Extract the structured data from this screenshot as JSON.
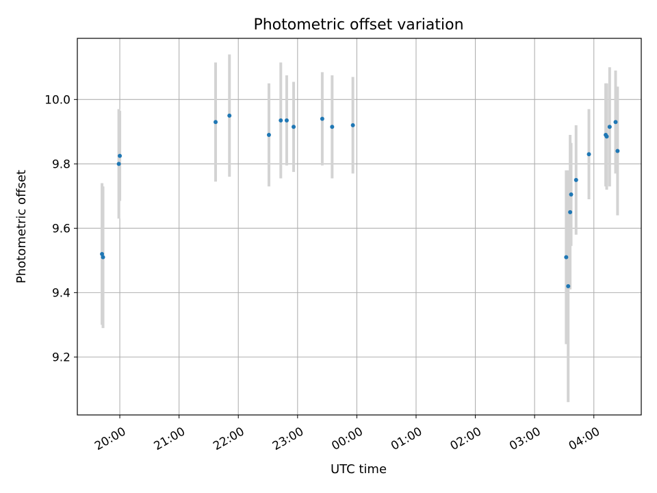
{
  "chart_data": {
    "type": "scatter",
    "title": "Photometric offset variation",
    "xlabel": "UTC time",
    "ylabel": "Photometric offset",
    "x_ticks": [
      "20:00",
      "21:00",
      "22:00",
      "23:00",
      "00:00",
      "01:00",
      "02:00",
      "03:00",
      "04:00"
    ],
    "xlim": [
      "2024-01-01T19:17",
      "2024-01-02T04:48"
    ],
    "ylim": [
      9.02,
      10.19
    ],
    "y_ticks": [
      9.2,
      9.4,
      9.6,
      9.8,
      10.0
    ],
    "grid": true,
    "colors": {
      "point": "#1f77b4",
      "errorbar": "#d3d3d3",
      "grid": "#b0b0b0"
    },
    "points": [
      {
        "t": "2024-01-01T19:42",
        "y": 9.52,
        "err": 0.22
      },
      {
        "t": "2024-01-01T19:43",
        "y": 9.51,
        "err": 0.22
      },
      {
        "t": "2024-01-01T19:59",
        "y": 9.8,
        "err": 0.17
      },
      {
        "t": "2024-01-01T20:00",
        "y": 9.825,
        "err": 0.14
      },
      {
        "t": "2024-01-01T21:37",
        "y": 9.93,
        "err": 0.185
      },
      {
        "t": "2024-01-01T21:51",
        "y": 9.95,
        "err": 0.19
      },
      {
        "t": "2024-01-01T22:31",
        "y": 9.89,
        "err": 0.16
      },
      {
        "t": "2024-01-01T22:43",
        "y": 9.935,
        "err": 0.18
      },
      {
        "t": "2024-01-01T22:49",
        "y": 9.935,
        "err": 0.14
      },
      {
        "t": "2024-01-01T22:56",
        "y": 9.915,
        "err": 0.14
      },
      {
        "t": "2024-01-01T23:25",
        "y": 9.94,
        "err": 0.145
      },
      {
        "t": "2024-01-01T23:35",
        "y": 9.915,
        "err": 0.16
      },
      {
        "t": "2024-01-01T23:56",
        "y": 9.92,
        "err": 0.15
      },
      {
        "t": "2024-01-02T03:32",
        "y": 9.51,
        "err": 0.27
      },
      {
        "t": "2024-01-02T03:34",
        "y": 9.42,
        "err": 0.36
      },
      {
        "t": "2024-01-02T03:36",
        "y": 9.65,
        "err": 0.24
      },
      {
        "t": "2024-01-02T03:37",
        "y": 9.705,
        "err": 0.16
      },
      {
        "t": "2024-01-02T03:42",
        "y": 9.75,
        "err": 0.17
      },
      {
        "t": "2024-01-02T03:55",
        "y": 9.83,
        "err": 0.14
      },
      {
        "t": "2024-01-02T04:12",
        "y": 9.89,
        "err": 0.16
      },
      {
        "t": "2024-01-02T04:13",
        "y": 9.885,
        "err": 0.165
      },
      {
        "t": "2024-01-02T04:16",
        "y": 9.915,
        "err": 0.185
      },
      {
        "t": "2024-01-02T04:22",
        "y": 9.93,
        "err": 0.16
      },
      {
        "t": "2024-01-02T04:24",
        "y": 9.84,
        "err": 0.2
      }
    ]
  }
}
